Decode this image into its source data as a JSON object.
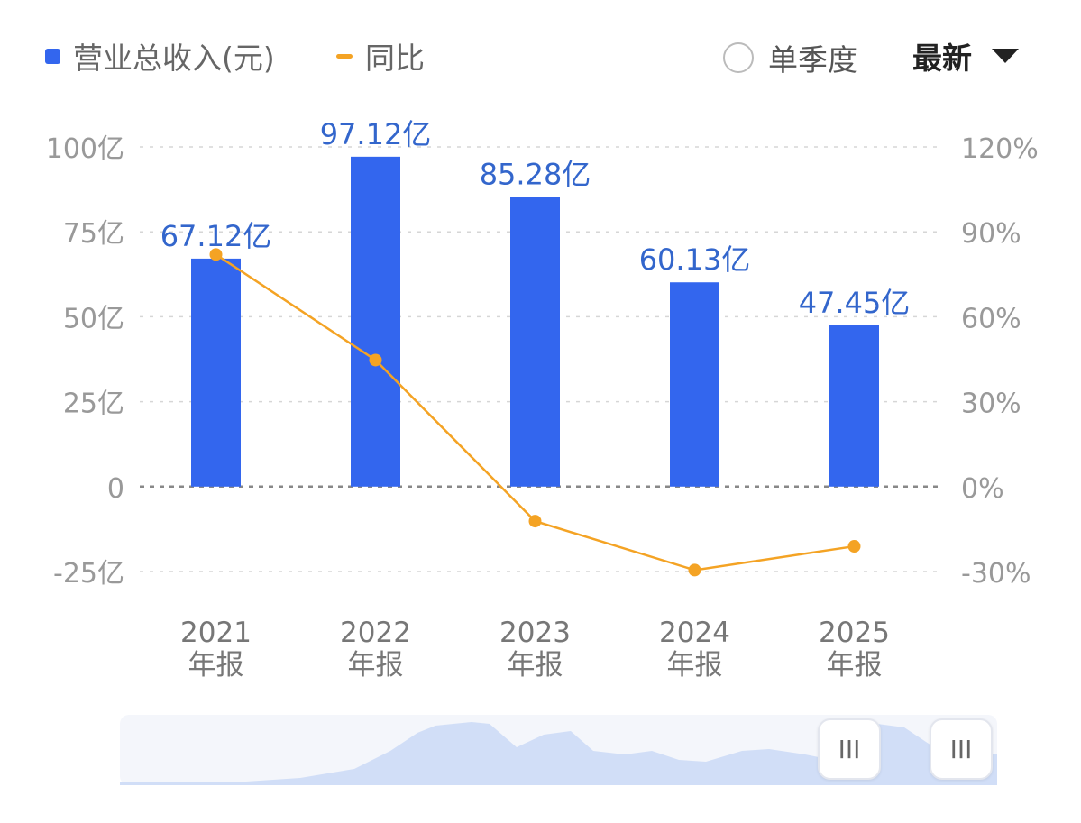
{
  "legend": {
    "revenue_label": "营业总收入(元)",
    "yoy_label": "同比"
  },
  "controls": {
    "quarter_label": "单季度",
    "period_label": "最新"
  },
  "colors": {
    "bar": "#3366ee",
    "line": "#f4a324",
    "grid": "#d6d6d6",
    "tick": "#999999",
    "data_label": "#3366cc",
    "zero_line": "#888888"
  },
  "slider": {
    "handle_glyph": "III"
  },
  "chart_data": {
    "type": "bar",
    "categories": [
      "2021年报",
      "2022年报",
      "2023年报",
      "2024年报",
      "2025年报"
    ],
    "categories_lines": [
      [
        "2021",
        "年报"
      ],
      [
        "2022",
        "年报"
      ],
      [
        "2023",
        "年报"
      ],
      [
        "2024",
        "年报"
      ],
      [
        "2025",
        "年报"
      ]
    ],
    "series": [
      {
        "name": "营业总收入(元)",
        "axis": "left",
        "kind": "bar",
        "values": [
          67.12,
          97.12,
          85.28,
          60.13,
          47.45
        ],
        "labels": [
          "67.12亿",
          "97.12亿",
          "85.28亿",
          "60.13亿",
          "47.45亿"
        ]
      },
      {
        "name": "同比",
        "axis": "right",
        "kind": "line",
        "values": [
          82,
          44.7,
          -12.2,
          -29.5,
          -21.1
        ]
      }
    ],
    "left_axis": {
      "ticks": [
        100,
        75,
        50,
        25,
        0,
        -25
      ],
      "tick_labels": [
        "100亿",
        "75亿",
        "50亿",
        "25亿",
        "0",
        "-25亿"
      ],
      "range": [
        -25,
        100
      ]
    },
    "right_axis": {
      "ticks": [
        120,
        90,
        60,
        30,
        0,
        -30
      ],
      "tick_labels": [
        "120%",
        "90%",
        "60%",
        "30%",
        "0%",
        "-30%"
      ],
      "range": [
        -30,
        120
      ]
    },
    "grid": true,
    "legend_position": "top-left"
  }
}
